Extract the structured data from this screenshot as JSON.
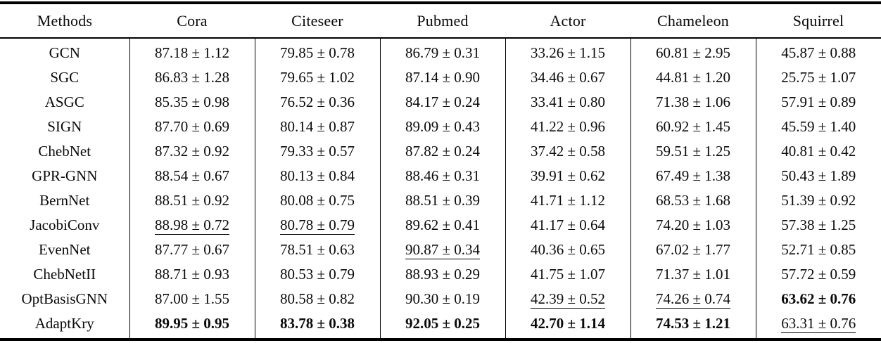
{
  "table": {
    "header": [
      "Methods",
      "Cora",
      "Citeseer",
      "Pubmed",
      "Actor",
      "Chameleon",
      "Squirrel"
    ],
    "rows": [
      {
        "method": "GCN",
        "cells": [
          {
            "v": "87.18 ± 1.12"
          },
          {
            "v": "79.85 ± 0.78"
          },
          {
            "v": "86.79 ± 0.31"
          },
          {
            "v": "33.26 ± 1.15"
          },
          {
            "v": "60.81 ± 2.95"
          },
          {
            "v": "45.87 ± 0.88"
          }
        ]
      },
      {
        "method": "SGC",
        "cells": [
          {
            "v": "86.83 ± 1.28"
          },
          {
            "v": "79.65 ± 1.02"
          },
          {
            "v": "87.14 ± 0.90"
          },
          {
            "v": "34.46 ± 0.67"
          },
          {
            "v": "44.81 ± 1.20"
          },
          {
            "v": "25.75 ± 1.07"
          }
        ]
      },
      {
        "method": "ASGC",
        "cells": [
          {
            "v": "85.35 ± 0.98"
          },
          {
            "v": "76.52 ± 0.36"
          },
          {
            "v": "84.17 ± 0.24"
          },
          {
            "v": "33.41 ± 0.80"
          },
          {
            "v": "71.38 ± 1.06"
          },
          {
            "v": "57.91 ± 0.89"
          }
        ]
      },
      {
        "method": "SIGN",
        "cells": [
          {
            "v": "87.70 ± 0.69"
          },
          {
            "v": "80.14 ± 0.87"
          },
          {
            "v": "89.09 ± 0.43"
          },
          {
            "v": "41.22 ± 0.96"
          },
          {
            "v": "60.92 ± 1.45"
          },
          {
            "v": "45.59 ± 1.40"
          }
        ]
      },
      {
        "method": "ChebNet",
        "cells": [
          {
            "v": "87.32 ± 0.92"
          },
          {
            "v": "79.33 ± 0.57"
          },
          {
            "v": "87.82 ± 0.24"
          },
          {
            "v": "37.42 ± 0.58"
          },
          {
            "v": "59.51 ± 1.25"
          },
          {
            "v": "40.81 ± 0.42"
          }
        ]
      },
      {
        "method": "GPR-GNN",
        "cells": [
          {
            "v": "88.54 ± 0.67"
          },
          {
            "v": "80.13 ± 0.84"
          },
          {
            "v": "88.46 ± 0.31"
          },
          {
            "v": "39.91 ± 0.62"
          },
          {
            "v": "67.49 ± 1.38"
          },
          {
            "v": "50.43 ± 1.89"
          }
        ]
      },
      {
        "method": "BernNet",
        "cells": [
          {
            "v": "88.51 ± 0.92"
          },
          {
            "v": "80.08 ± 0.75"
          },
          {
            "v": "88.51 ± 0.39"
          },
          {
            "v": "41.71 ± 1.12"
          },
          {
            "v": "68.53 ± 1.68"
          },
          {
            "v": "51.39 ± 0.92"
          }
        ]
      },
      {
        "method": "JacobiConv",
        "cells": [
          {
            "v": "88.98 ± 0.72",
            "underline": true
          },
          {
            "v": "80.78 ± 0.79",
            "underline": true
          },
          {
            "v": "89.62 ± 0.41"
          },
          {
            "v": "41.17 ± 0.64"
          },
          {
            "v": "74.20 ± 1.03"
          },
          {
            "v": "57.38 ± 1.25"
          }
        ]
      },
      {
        "method": "EvenNet",
        "cells": [
          {
            "v": "87.77 ± 0.67"
          },
          {
            "v": "78.51 ± 0.63"
          },
          {
            "v": "90.87 ± 0.34",
            "underline": true
          },
          {
            "v": "40.36 ± 0.65"
          },
          {
            "v": "67.02 ± 1.77"
          },
          {
            "v": "52.71 ± 0.85"
          }
        ]
      },
      {
        "method": "ChebNetII",
        "cells": [
          {
            "v": "88.71 ± 0.93"
          },
          {
            "v": "80.53 ± 0.79"
          },
          {
            "v": "88.93 ± 0.29"
          },
          {
            "v": "41.75 ± 1.07"
          },
          {
            "v": "71.37 ± 1.01"
          },
          {
            "v": "57.72 ± 0.59"
          }
        ]
      },
      {
        "method": "OptBasisGNN",
        "cells": [
          {
            "v": "87.00 ± 1.55"
          },
          {
            "v": "80.58 ± 0.82"
          },
          {
            "v": "90.30 ± 0.19"
          },
          {
            "v": "42.39 ± 0.52",
            "underline": true
          },
          {
            "v": "74.26 ± 0.74",
            "underline": true
          },
          {
            "v": "63.62 ± 0.76",
            "bold": true
          }
        ]
      },
      {
        "method": "AdaptKry",
        "cells": [
          {
            "v": "89.95 ± 0.95",
            "bold": true
          },
          {
            "v": "83.78 ± 0.38",
            "bold": true
          },
          {
            "v": "92.05 ± 0.25",
            "bold": true
          },
          {
            "v": "42.70 ± 1.14",
            "bold": true
          },
          {
            "v": "74.53 ± 1.21",
            "bold": true
          },
          {
            "v": "63.31 ± 0.76",
            "underline": true
          }
        ]
      }
    ]
  }
}
